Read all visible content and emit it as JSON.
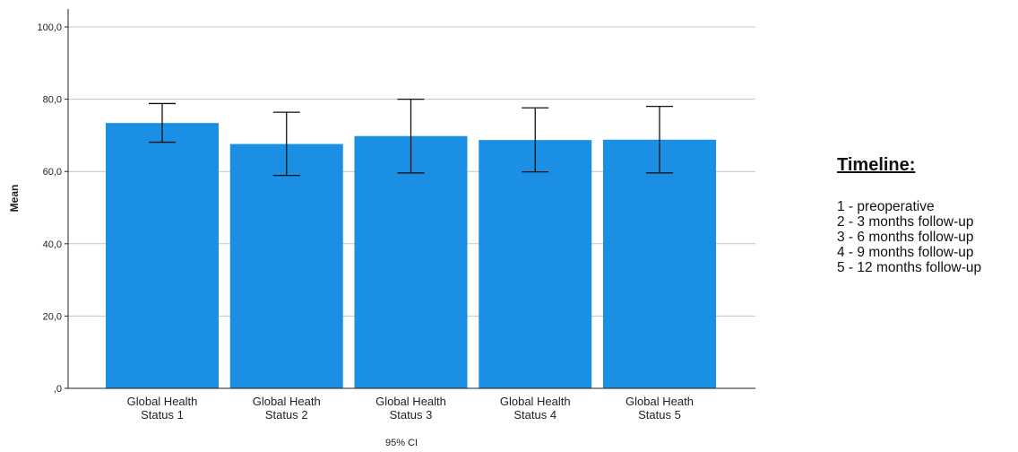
{
  "chart_data": {
    "type": "bar",
    "title": "",
    "xlabel": "95% CI",
    "ylabel": "Mean",
    "ylim": [
      0,
      100
    ],
    "yticks": [
      "100,0",
      "80,0",
      "60,0",
      "40,0",
      "20,0",
      ",0"
    ],
    "ytick_values": [
      100,
      80,
      60,
      40,
      20,
      0
    ],
    "grid": true,
    "bar_color": "#1a8fe3",
    "categories": [
      [
        "Global Health",
        "Status 1"
      ],
      [
        "Global Heath",
        "Status 2"
      ],
      [
        "Global Health",
        "Status 3"
      ],
      [
        "Global Health",
        "Status 4"
      ],
      [
        "Global Heath",
        "Status 5"
      ]
    ],
    "values": [
      73.4,
      67.6,
      69.8,
      68.7,
      68.8
    ],
    "ci_lower": [
      68.1,
      58.9,
      59.6,
      59.9,
      59.6
    ],
    "ci_upper": [
      78.8,
      76.4,
      80.0,
      77.6,
      78.0
    ]
  },
  "legend": {
    "title": "Timeline:",
    "items": [
      "1 - preoperative",
      "2 - 3 months follow-up",
      "3 - 6 months follow-up",
      "4 - 9 months follow-up",
      "5 - 12 months follow-up"
    ]
  }
}
